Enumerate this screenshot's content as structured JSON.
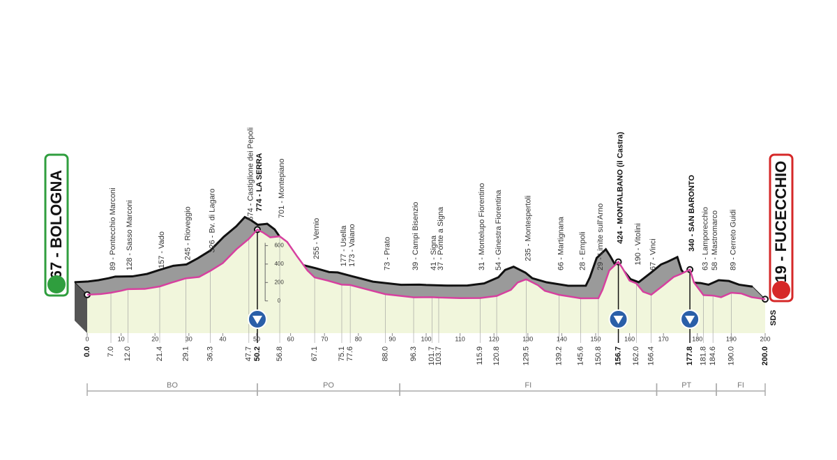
{
  "chart_data": {
    "type": "area",
    "start": "67 - BOLOGNA",
    "finish": "19 - FUCECCHIO",
    "note": "SDS",
    "x": [
      0,
      4,
      7,
      10,
      12,
      17,
      21.4,
      25,
      29.1,
      33,
      36.3,
      40,
      44,
      47.7,
      50.2,
      52,
      54,
      56.8,
      59,
      62,
      65,
      67.1,
      71,
      75.1,
      77.6,
      82,
      88,
      96.3,
      101.7,
      103.7,
      110,
      115.9,
      120.8,
      125,
      127,
      129.5,
      133,
      135,
      139.2,
      145.6,
      150.8,
      152,
      154,
      156.7,
      158,
      160,
      162,
      164,
      166.4,
      170,
      173,
      175,
      177.8,
      179,
      181.8,
      184.6,
      187,
      190,
      193,
      196,
      200
    ],
    "values": [
      67,
      75,
      89,
      110,
      128,
      130,
      157,
      200,
      245,
      260,
      326,
      410,
      560,
      674,
      774,
      740,
      690,
      701,
      640,
      480,
      330,
      255,
      220,
      177,
      173,
      130,
      73,
      39,
      41,
      37,
      30,
      31,
      54,
      120,
      200,
      235,
      170,
      110,
      66,
      28,
      29,
      120,
      330,
      424,
      350,
      220,
      190,
      100,
      67,
      170,
      260,
      290,
      340,
      200,
      63,
      58,
      40,
      89,
      80,
      40,
      19
    ],
    "color": "#d6409f",
    "xlim": [
      0,
      200
    ],
    "xticks": [
      0,
      10,
      20,
      30,
      40,
      50,
      60,
      70,
      80,
      90,
      100,
      110,
      120,
      130,
      140,
      150,
      160,
      170,
      180,
      190,
      200
    ],
    "ylim": [
      -350,
      800
    ],
    "yticks": [
      0,
      200,
      400,
      600
    ],
    "waypoints": [
      {
        "label": "89 - Pontecchio Marconi",
        "km": {
          "value": 7,
          "label": "7.0"
        }
      },
      {
        "label": "128 - Sasso Marconi",
        "km": {
          "value": 12,
          "label": "12.0"
        }
      },
      {
        "label": "157 - Vado",
        "km": {
          "value": 21.4,
          "label": "21.4"
        }
      },
      {
        "label": "245 - Rioveggio",
        "km": {
          "value": 29.1,
          "label": "29.1"
        }
      },
      {
        "label": "326 - Bv. di Lagaro",
        "km": {
          "value": 36.3,
          "label": "36.3"
        }
      },
      {
        "label": "674 - Castiglione dei Pepoli",
        "km": {
          "value": 47.7,
          "label": "47.7"
        }
      },
      {
        "label": "774 - LA SERRA",
        "km": {
          "value": 50.2,
          "label": "50.2"
        },
        "bold": true,
        "gpm": true
      },
      {
        "label": "701 - Montepiano",
        "km": {
          "value": 56.8,
          "label": "56.8"
        }
      },
      {
        "label": "255 - Vernio",
        "km": {
          "value": 67.1,
          "label": "67.1"
        }
      },
      {
        "label": "177 - Usella",
        "km": {
          "value": 75.1,
          "label": "75.1"
        }
      },
      {
        "label": "173 - Vaiano",
        "km": {
          "value": 77.6,
          "label": "77.6"
        }
      },
      {
        "label": "73 - Prato",
        "km": {
          "value": 88,
          "label": "88.0"
        }
      },
      {
        "label": "39 - Campi Bisenzio",
        "km": {
          "value": 96.3,
          "label": "96.3"
        }
      },
      {
        "label": "41 - Signa",
        "km": {
          "value": 101.7,
          "label": "101.7"
        }
      },
      {
        "label": "37 - Ponte a Signa",
        "km": {
          "value": 103.7,
          "label": "103.7"
        }
      },
      {
        "label": "31 - Montelupo Fiorentino",
        "km": {
          "value": 115.9,
          "label": "115.9"
        }
      },
      {
        "label": "54 - Ginestra Fiorentina",
        "km": {
          "value": 120.8,
          "label": "120.8"
        }
      },
      {
        "label": "235 - Montespertoli",
        "km": {
          "value": 129.5,
          "label": "129.5"
        }
      },
      {
        "label": "66 - Martignana",
        "km": {
          "value": 139.2,
          "label": "139.2"
        }
      },
      {
        "label": "28 - Empoli",
        "km": {
          "value": 145.6,
          "label": "145.6"
        }
      },
      {
        "label": "29 - Limite sull'Arno",
        "km": {
          "value": 150.8,
          "label": "150.8"
        }
      },
      {
        "label": "424 - MONTALBANO (il Castra)",
        "km": {
          "value": 156.7,
          "label": "156.7"
        },
        "bold": true,
        "gpm": true
      },
      {
        "label": "190 - Vitolini",
        "km": {
          "value": 162,
          "label": "162.0"
        }
      },
      {
        "label": "67 - Vinci",
        "km": {
          "value": 166.4,
          "label": "166.4"
        }
      },
      {
        "label": "340 - SAN BARONTO",
        "km": {
          "value": 177.8,
          "label": "177.8"
        },
        "bold": true,
        "gpm": true
      },
      {
        "label": "63 - Lamporecchio",
        "km": {
          "value": 181.8,
          "label": "181.8"
        }
      },
      {
        "label": "58 - Mastromarco",
        "km": {
          "value": 184.6,
          "label": "184.6"
        }
      },
      {
        "label": "89 - Cerreto Guidi",
        "km": {
          "value": 190,
          "label": "190.0"
        }
      }
    ],
    "ends": [
      {
        "km": {
          "value": 0,
          "label": "0.0"
        }
      },
      {
        "km": {
          "value": 200,
          "label": "200.0"
        }
      }
    ],
    "regions": [
      "BO",
      "PO",
      "FI",
      "PT",
      "FI"
    ]
  }
}
